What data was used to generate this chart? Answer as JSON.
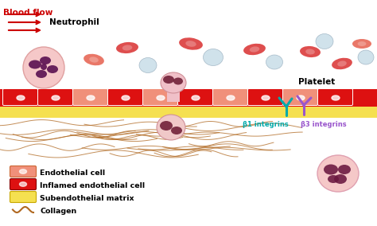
{
  "bg_color": "#ffffff",
  "blood_flow_text": "Blood flow",
  "blood_flow_color": "#cc0000",
  "neutrophil_text": "Neutrophil",
  "platelet_text": "Platelet",
  "b1_text": "β1 integrins",
  "b3_text": "β3 integrins",
  "b1_color": "#00aaaa",
  "b3_color": "#9955cc",
  "arrow_color": "#cc0000",
  "rbc_color_red": "#dd4444",
  "rbc_color_salmon": "#e87060",
  "wbc_color": "#c8dde8",
  "endothelial_color": "#f0907a",
  "inflamed_color": "#dd1111",
  "subendothelial_color": "#f5e050",
  "collagen_color": "#b06820",
  "neutrophil_outer": "#f5c8c8",
  "neutrophil_inner": "#5a1050",
  "platelet_outer": "#f5c8c8",
  "platelet_inner": "#6a1840",
  "penetrating_outer": "#f0c0c8",
  "penetrating_inner": "#6a1830",
  "legend_items": [
    {
      "label": "Endothelial cell",
      "facecolor": "#f0907a",
      "edgecolor": "#cc6633"
    },
    {
      "label": "Inflamed endothelial cell",
      "facecolor": "#dd1111",
      "edgecolor": "#880000"
    },
    {
      "label": "Subendothelial matrix",
      "facecolor": "#f5e050",
      "edgecolor": "#c8a800"
    },
    {
      "label": "Collagen",
      "facecolor": "#b06820",
      "edgecolor": "#7a4810"
    }
  ]
}
